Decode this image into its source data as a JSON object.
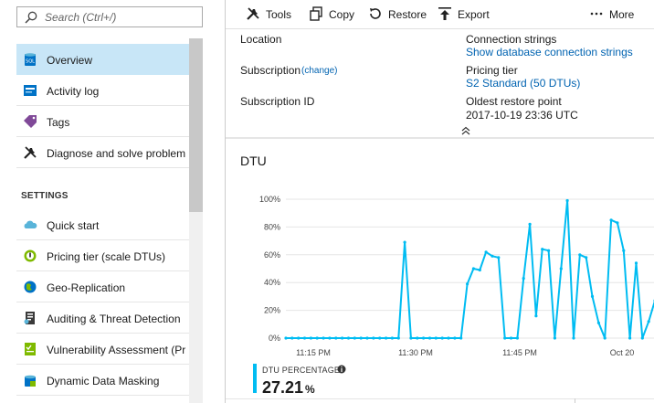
{
  "search": {
    "placeholder": "Search (Ctrl+/)"
  },
  "nav": {
    "items": [
      {
        "label": "Overview",
        "icon": "sql-database-icon",
        "active": true
      },
      {
        "label": "Activity log",
        "icon": "activity-log-icon"
      },
      {
        "label": "Tags",
        "icon": "tag-icon"
      },
      {
        "label": "Diagnose and solve problems",
        "icon": "wrench-icon"
      }
    ],
    "settings_header": "SETTINGS",
    "settings_items": [
      {
        "label": "Quick start",
        "icon": "cloud-icon"
      },
      {
        "label": "Pricing tier (scale DTUs)",
        "icon": "pricing-tier-icon"
      },
      {
        "label": "Geo-Replication",
        "icon": "globe-icon"
      },
      {
        "label": "Auditing & Threat Detection",
        "icon": "audit-icon"
      },
      {
        "label": "Vulnerability Assessment (Pr...",
        "icon": "vulnerability-icon"
      },
      {
        "label": "Dynamic Data Masking",
        "icon": "data-masking-icon"
      }
    ]
  },
  "toolbar": {
    "tools": "Tools",
    "copy": "Copy",
    "restore": "Restore",
    "export": "Export",
    "more": "More"
  },
  "essentials": {
    "location_label": "Location",
    "subscription_label": "Subscription",
    "subscription_change": "(change)",
    "subscription_id_label": "Subscription ID",
    "connection_strings_label": "Connection strings",
    "connection_strings_link": "Show database connection strings",
    "pricing_tier_label": "Pricing tier",
    "pricing_tier_value": "S2 Standard (50 DTUs)",
    "oldest_restore_label": "Oldest restore point",
    "oldest_restore_value": "2017-10-19 23:36 UTC"
  },
  "chart": {
    "title": "DTU",
    "stat_label": "DTU PERCENTAGE",
    "stat_value": "27.21",
    "stat_unit": "%"
  },
  "colors": {
    "accent": "#00bcf2",
    "link": "#0063b1",
    "active_nav": "#c8e6f7"
  },
  "chart_data": {
    "type": "line",
    "title": "DTU",
    "yticks": [
      "100%",
      "80%",
      "60%",
      "40%",
      "20%",
      "0%"
    ],
    "xticks": [
      "11:15 PM",
      "11:30 PM",
      "11:45 PM",
      "Oct 20"
    ],
    "ylim": [
      0,
      100
    ],
    "grid": true,
    "series": [
      {
        "name": "DTU PERCENTAGE",
        "values": [
          0,
          0,
          0,
          0,
          0,
          0,
          0,
          0,
          0,
          0,
          0,
          0,
          0,
          0,
          0,
          0,
          0,
          0,
          0,
          69,
          0,
          0,
          0,
          0,
          0,
          0,
          0,
          0,
          0,
          39,
          50,
          49,
          62,
          59,
          58,
          0,
          0,
          0,
          43,
          82,
          16,
          64,
          63,
          0,
          50,
          99,
          0,
          60,
          58,
          30,
          11,
          0,
          85,
          83,
          63,
          0,
          54,
          0,
          12,
          27
        ]
      }
    ]
  }
}
